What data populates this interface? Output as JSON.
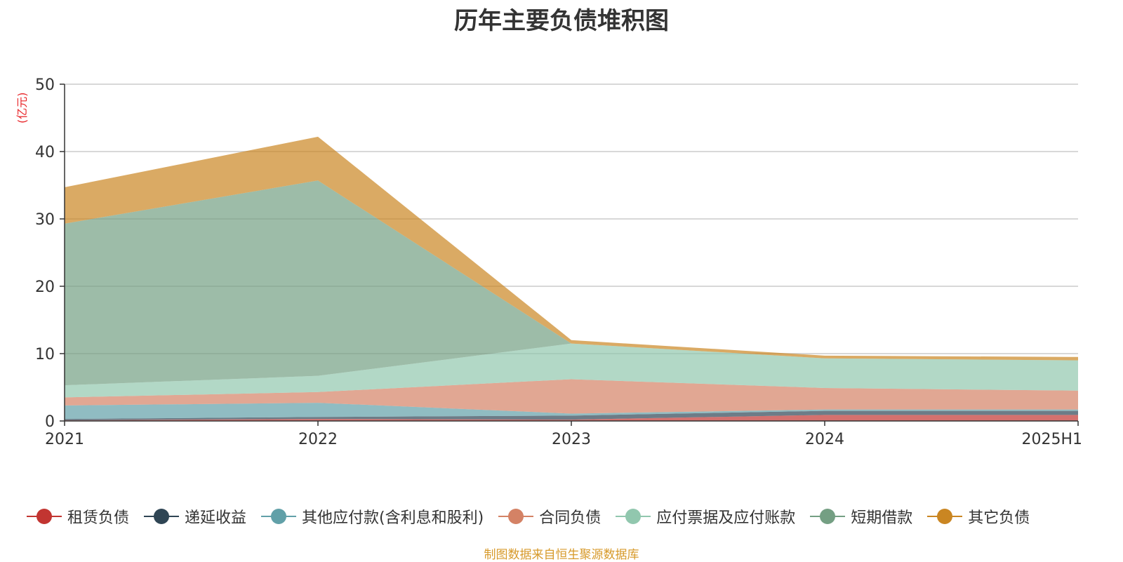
{
  "title": "历年主要负债堆积图",
  "source": "制图数据来自恒生聚源数据库",
  "chart_data": {
    "type": "area",
    "stacked": true,
    "ylabel": "(亿元)",
    "ylim": [
      0,
      50
    ],
    "yticks": [
      0,
      10,
      20,
      30,
      40,
      50
    ],
    "grid": true,
    "legend_position": "bottom",
    "categories": [
      "2021",
      "2022",
      "2023",
      "2024",
      "2025H1"
    ],
    "series": [
      {
        "name": "租赁负债",
        "color": "#c23531",
        "values": [
          0.1,
          0.3,
          0.2,
          0.9,
          0.9
        ]
      },
      {
        "name": "递延收益",
        "color": "#2f4554",
        "values": [
          0.2,
          0.3,
          0.6,
          0.6,
          0.6
        ]
      },
      {
        "name": "其他应付款(含利息和股利)",
        "color": "#61a0a8",
        "values": [
          2.0,
          2.1,
          0.3,
          0.2,
          0.2
        ]
      },
      {
        "name": "合同负债",
        "color": "#d48265",
        "values": [
          1.2,
          1.6,
          5.1,
          3.2,
          2.8
        ]
      },
      {
        "name": "应付票据及应付账款",
        "color": "#91c7ae",
        "values": [
          1.8,
          2.4,
          5.3,
          4.4,
          4.5
        ]
      },
      {
        "name": "短期借款",
        "color": "#749f83",
        "values": [
          24.0,
          29.0,
          0.0,
          0.0,
          0.0
        ]
      },
      {
        "name": "其它负债",
        "color": "#ca8622",
        "values": [
          5.4,
          6.5,
          0.5,
          0.4,
          0.5
        ]
      }
    ]
  }
}
